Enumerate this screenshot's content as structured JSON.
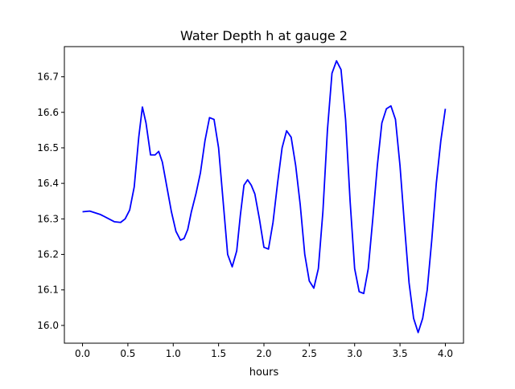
{
  "chart_data": {
    "type": "line",
    "title": "Water Depth h at gauge 2",
    "xlabel": "hours",
    "ylabel": "",
    "xlim": [
      -0.2,
      4.2
    ],
    "ylim": [
      15.95,
      16.785
    ],
    "x_ticks": [
      0.0,
      0.5,
      1.0,
      1.5,
      2.0,
      2.5,
      3.0,
      3.5,
      4.0
    ],
    "x_tick_labels": [
      "0.0",
      "0.5",
      "1.0",
      "1.5",
      "2.0",
      "2.5",
      "3.0",
      "3.5",
      "4.0"
    ],
    "y_ticks": [
      16.0,
      16.1,
      16.2,
      16.3,
      16.4,
      16.5,
      16.6,
      16.7
    ],
    "y_tick_labels": [
      "16.0",
      "16.1",
      "16.2",
      "16.3",
      "16.4",
      "16.5",
      "16.6",
      "16.7"
    ],
    "grid": false,
    "series": [
      {
        "color": "#0000ff",
        "x": [
          0.0,
          0.08,
          0.2,
          0.35,
          0.42,
          0.47,
          0.52,
          0.57,
          0.62,
          0.66,
          0.7,
          0.75,
          0.8,
          0.84,
          0.88,
          0.93,
          0.98,
          1.03,
          1.08,
          1.12,
          1.16,
          1.2,
          1.25,
          1.3,
          1.35,
          1.4,
          1.45,
          1.5,
          1.55,
          1.6,
          1.65,
          1.7,
          1.74,
          1.78,
          1.82,
          1.86,
          1.9,
          1.95,
          2.0,
          2.05,
          2.1,
          2.15,
          2.2,
          2.25,
          2.3,
          2.35,
          2.4,
          2.45,
          2.5,
          2.55,
          2.6,
          2.65,
          2.7,
          2.75,
          2.8,
          2.85,
          2.9,
          2.95,
          3.0,
          3.05,
          3.1,
          3.15,
          3.2,
          3.25,
          3.3,
          3.35,
          3.4,
          3.45,
          3.5,
          3.55,
          3.6,
          3.65,
          3.7,
          3.75,
          3.8,
          3.85,
          3.9,
          3.95,
          4.0
        ],
        "y": [
          16.32,
          16.322,
          16.312,
          16.292,
          16.29,
          16.3,
          16.325,
          16.39,
          16.53,
          16.615,
          16.57,
          16.48,
          16.48,
          16.49,
          16.46,
          16.39,
          16.32,
          16.265,
          16.24,
          16.245,
          16.27,
          16.32,
          16.37,
          16.43,
          16.52,
          16.585,
          16.58,
          16.5,
          16.35,
          16.2,
          16.165,
          16.21,
          16.31,
          16.395,
          16.41,
          16.395,
          16.37,
          16.3,
          16.22,
          16.215,
          16.29,
          16.4,
          16.5,
          16.548,
          16.53,
          16.45,
          16.34,
          16.2,
          16.125,
          16.105,
          16.16,
          16.32,
          16.55,
          16.71,
          16.745,
          16.72,
          16.58,
          16.35,
          16.16,
          16.095,
          16.09,
          16.16,
          16.3,
          16.45,
          16.57,
          16.61,
          16.618,
          16.58,
          16.45,
          16.28,
          16.12,
          16.02,
          15.98,
          16.02,
          16.1,
          16.24,
          16.4,
          16.52,
          16.61
        ]
      }
    ]
  }
}
